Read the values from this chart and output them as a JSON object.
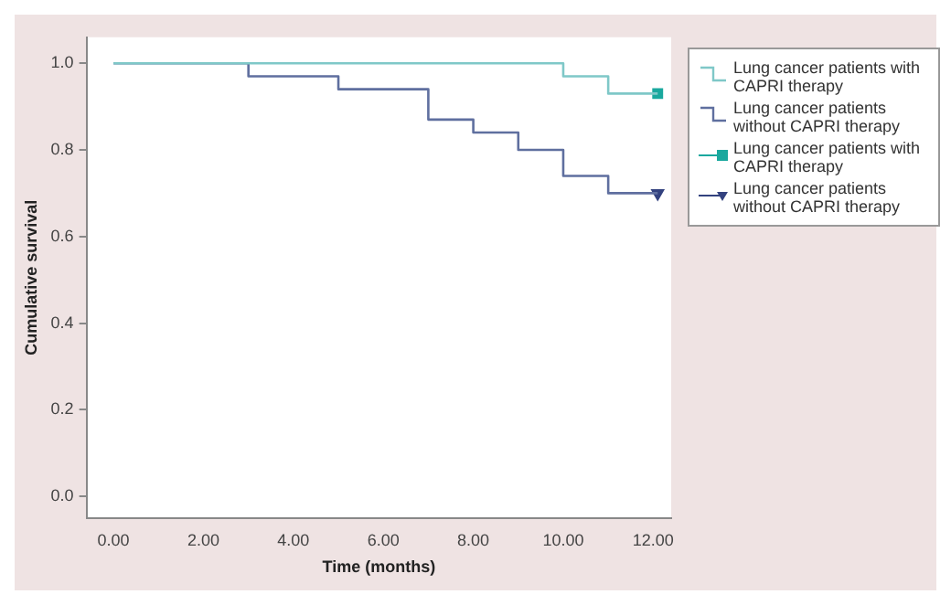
{
  "chart_data": {
    "type": "step",
    "xlabel": "Time (months)",
    "ylabel": "Cumulative survival",
    "xlim": [
      -0.6,
      12.4
    ],
    "ylim": [
      -0.05,
      1.06
    ],
    "xticks": [
      {
        "value": 0,
        "label": "0.00"
      },
      {
        "value": 2,
        "label": "2.00"
      },
      {
        "value": 4,
        "label": "4.00"
      },
      {
        "value": 6,
        "label": "6.00"
      },
      {
        "value": 8,
        "label": "8.00"
      },
      {
        "value": 10,
        "label": "10.00"
      },
      {
        "value": 12,
        "label": "12.00"
      }
    ],
    "yticks": [
      {
        "value": 0,
        "label": "0.0"
      },
      {
        "value": 0.2,
        "label": "0.2"
      },
      {
        "value": 0.4,
        "label": "0.4"
      },
      {
        "value": 0.6,
        "label": "0.6"
      },
      {
        "value": 0.8,
        "label": "0.8"
      },
      {
        "value": 1,
        "label": "1.0"
      }
    ],
    "grid": false,
    "legend": "right",
    "series": [
      {
        "name": "Lung cancer patients with CAPRI therapy",
        "color": "#7fc8c8",
        "x": [
          0,
          10,
          11,
          12.1
        ],
        "values": [
          1,
          0.97,
          0.93,
          0.93
        ]
      },
      {
        "name": "Lung cancer patients without CAPRI therapy",
        "color": "#5f6f9f",
        "x": [
          0,
          3,
          5,
          7,
          8,
          9,
          10,
          11,
          12.1
        ],
        "values": [
          1,
          0.97,
          0.94,
          0.87,
          0.84,
          0.8,
          0.74,
          0.7,
          0.7
        ]
      },
      {
        "name": "Lung cancer patients with CAPRI therapy",
        "type": "scatter",
        "marker": "square",
        "color": "#1aa89e",
        "x": [
          12.1
        ],
        "values": [
          0.93
        ]
      },
      {
        "name": "Lung cancer patients without CAPRI therapy",
        "type": "scatter",
        "marker": "triangle",
        "color": "#33427f",
        "x": [
          12.1
        ],
        "values": [
          0.7
        ]
      }
    ]
  }
}
